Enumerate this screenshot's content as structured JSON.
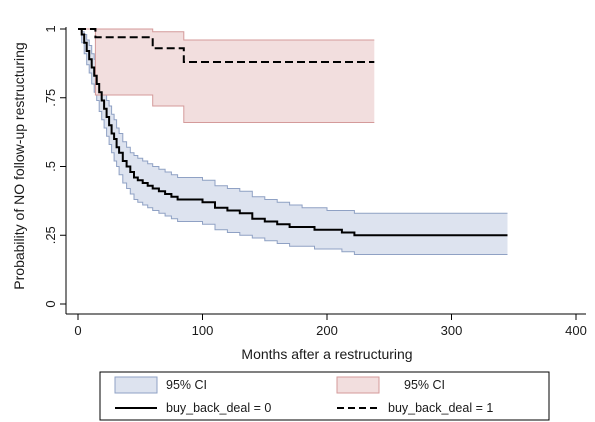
{
  "chart_data": {
    "type": "line",
    "title": "",
    "xlabel": "Months after a restructuring",
    "ylabel": "Probability of NO follow-up restructuring",
    "xlim": [
      0,
      400
    ],
    "ylim": [
      0,
      1
    ],
    "x_ticks": [
      0,
      100,
      200,
      300,
      400
    ],
    "y_ticks": [
      0,
      0.25,
      0.5,
      0.75,
      1
    ],
    "x_tick_labels": [
      "0",
      "100",
      "200",
      "300",
      "400"
    ],
    "y_tick_labels": [
      "0",
      ".25",
      ".5",
      ".75",
      "1"
    ],
    "grid": false,
    "legend_position": "bottom",
    "series": [
      {
        "name": "buy_back_deal = 0",
        "style": "solid",
        "color": "#000000",
        "x": [
          0,
          3,
          5,
          7,
          9,
          11,
          13,
          15,
          17,
          19,
          21,
          23,
          25,
          27,
          29,
          31,
          33,
          36,
          39,
          42,
          45,
          48,
          52,
          56,
          60,
          65,
          70,
          75,
          80,
          90,
          100,
          110,
          120,
          130,
          140,
          150,
          160,
          170,
          180,
          190,
          200,
          212,
          222,
          240,
          280,
          320,
          345
        ],
        "y": [
          1.0,
          0.98,
          0.95,
          0.92,
          0.89,
          0.86,
          0.83,
          0.8,
          0.77,
          0.74,
          0.71,
          0.68,
          0.65,
          0.62,
          0.6,
          0.57,
          0.55,
          0.52,
          0.5,
          0.48,
          0.46,
          0.45,
          0.44,
          0.43,
          0.42,
          0.41,
          0.4,
          0.39,
          0.38,
          0.38,
          0.37,
          0.35,
          0.34,
          0.33,
          0.31,
          0.3,
          0.29,
          0.28,
          0.28,
          0.27,
          0.27,
          0.26,
          0.25,
          0.25,
          0.25,
          0.25,
          0.25
        ]
      },
      {
        "name": "buy_back_deal = 1",
        "style": "dashed",
        "color": "#000000",
        "x": [
          0,
          14,
          60,
          85,
          238
        ],
        "y": [
          1.0,
          0.97,
          0.93,
          0.88,
          0.88
        ]
      }
    ],
    "confidence_bands": [
      {
        "name": "95% CI",
        "for_series": "buy_back_deal = 0",
        "fill": "#dde3ef",
        "stroke": "#8fa1c4",
        "x": [
          0,
          3,
          5,
          7,
          9,
          11,
          13,
          15,
          17,
          19,
          21,
          23,
          25,
          27,
          29,
          31,
          33,
          36,
          39,
          42,
          45,
          48,
          52,
          56,
          60,
          65,
          70,
          75,
          80,
          90,
          100,
          110,
          120,
          130,
          140,
          150,
          160,
          170,
          180,
          190,
          200,
          212,
          222,
          240,
          280,
          320,
          345
        ],
        "lower": [
          1.0,
          0.95,
          0.91,
          0.87,
          0.84,
          0.8,
          0.77,
          0.74,
          0.7,
          0.67,
          0.64,
          0.61,
          0.58,
          0.55,
          0.52,
          0.5,
          0.47,
          0.44,
          0.42,
          0.4,
          0.38,
          0.37,
          0.36,
          0.35,
          0.34,
          0.33,
          0.32,
          0.31,
          0.3,
          0.3,
          0.29,
          0.27,
          0.26,
          0.25,
          0.24,
          0.23,
          0.22,
          0.21,
          0.21,
          0.2,
          0.2,
          0.19,
          0.18,
          0.18,
          0.18,
          0.18,
          0.18
        ],
        "upper": [
          1.0,
          0.99,
          0.98,
          0.96,
          0.94,
          0.91,
          0.89,
          0.86,
          0.83,
          0.8,
          0.77,
          0.74,
          0.72,
          0.69,
          0.67,
          0.64,
          0.62,
          0.59,
          0.57,
          0.55,
          0.54,
          0.53,
          0.52,
          0.51,
          0.5,
          0.49,
          0.48,
          0.47,
          0.46,
          0.46,
          0.45,
          0.43,
          0.42,
          0.41,
          0.39,
          0.38,
          0.37,
          0.36,
          0.35,
          0.35,
          0.34,
          0.34,
          0.33,
          0.33,
          0.33,
          0.33,
          0.33
        ]
      },
      {
        "name": "95% CI",
        "for_series": "buy_back_deal = 1",
        "fill": "#f2dede",
        "stroke": "#d49a9a",
        "x": [
          0,
          14,
          60,
          85,
          238
        ],
        "lower": [
          1.0,
          0.76,
          0.72,
          0.66,
          0.66
        ],
        "upper": [
          1.0,
          1.0,
          0.99,
          0.96,
          0.96
        ]
      }
    ],
    "legend": [
      {
        "label": "95% CI",
        "kind": "band",
        "color": "#dde3ef",
        "stroke": "#8fa1c4"
      },
      {
        "label": "95% CI",
        "kind": "band",
        "color": "#f2dede",
        "stroke": "#d49a9a"
      },
      {
        "label": "buy_back_deal = 0",
        "kind": "line",
        "style": "solid"
      },
      {
        "label": "buy_back_deal = 1",
        "kind": "line",
        "style": "dashed"
      }
    ]
  }
}
